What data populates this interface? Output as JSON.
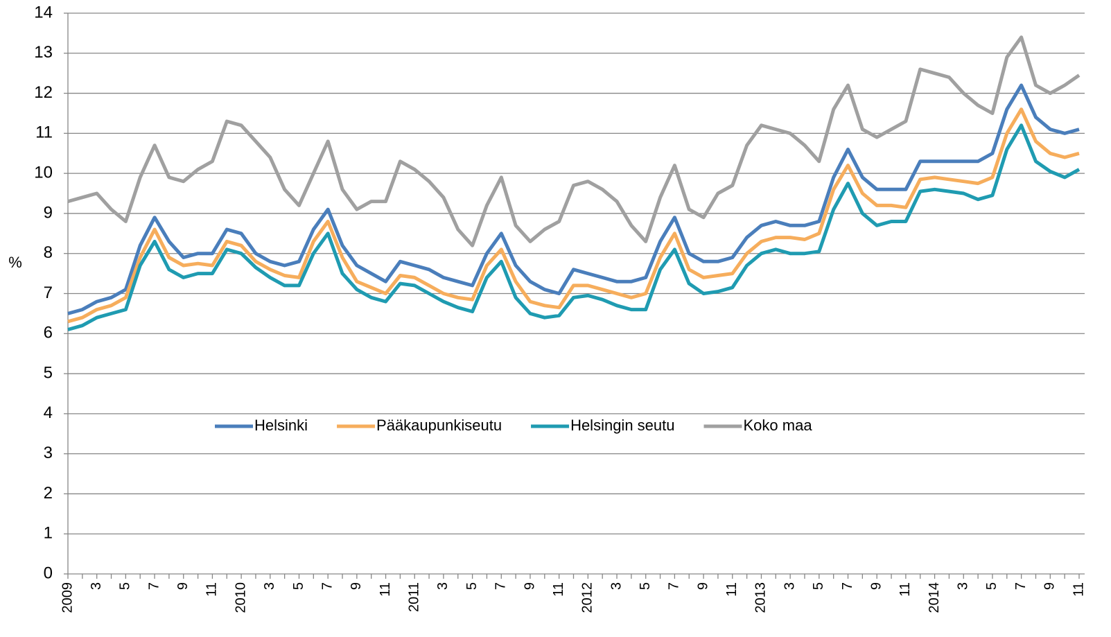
{
  "chart_data": {
    "type": "line",
    "y_label": "%",
    "categories": [
      "2009",
      null,
      "3",
      null,
      "5",
      null,
      "7",
      null,
      "9",
      null,
      "11",
      null,
      "2010",
      null,
      "3",
      null,
      "5",
      null,
      "7",
      null,
      "9",
      null,
      "11",
      null,
      "2011",
      null,
      "3",
      null,
      "5",
      null,
      "7",
      null,
      "9",
      null,
      "11",
      null,
      "2012",
      null,
      "3",
      null,
      "5",
      null,
      "7",
      null,
      "9",
      null,
      "11",
      null,
      "2013",
      null,
      "3",
      null,
      "5",
      null,
      "7",
      null,
      "9",
      null,
      "11",
      null,
      "2014",
      null,
      "3",
      null,
      "5",
      null,
      "7",
      null,
      "9",
      null,
      "11"
    ],
    "series": [
      {
        "name": "Helsinki",
        "color": "#4a7ebb",
        "values": [
          6.5,
          6.6,
          6.8,
          6.9,
          7.1,
          8.2,
          8.9,
          8.3,
          7.9,
          8.0,
          8.0,
          8.6,
          8.5,
          8.0,
          7.8,
          7.7,
          7.8,
          8.6,
          9.1,
          8.2,
          7.7,
          7.5,
          7.3,
          7.8,
          7.7,
          7.6,
          7.4,
          7.3,
          7.2,
          8.0,
          8.5,
          7.7,
          7.3,
          7.1,
          7.0,
          7.6,
          7.5,
          7.4,
          7.3,
          7.3,
          7.4,
          8.3,
          8.9,
          8.0,
          7.8,
          7.8,
          7.9,
          8.4,
          8.7,
          8.8,
          8.7,
          8.7,
          8.8,
          9.9,
          10.6,
          9.9,
          9.6,
          9.6,
          9.6,
          10.3,
          10.3,
          10.3,
          10.3,
          10.3,
          10.5,
          11.6,
          12.2,
          11.4,
          11.1,
          11.0,
          11.1
        ]
      },
      {
        "name": "Pääkaupunkiseutu",
        "color": "#f6ad5c",
        "values": [
          6.3,
          6.4,
          6.6,
          6.7,
          6.9,
          7.9,
          8.6,
          7.9,
          7.7,
          7.75,
          7.7,
          8.3,
          8.2,
          7.8,
          7.6,
          7.45,
          7.4,
          8.3,
          8.8,
          7.9,
          7.3,
          7.15,
          7.0,
          7.45,
          7.4,
          7.2,
          7.0,
          6.9,
          6.85,
          7.7,
          8.1,
          7.3,
          6.8,
          6.7,
          6.65,
          7.2,
          7.2,
          7.1,
          7.0,
          6.9,
          7.0,
          7.9,
          8.5,
          7.6,
          7.4,
          7.45,
          7.5,
          8.0,
          8.3,
          8.4,
          8.4,
          8.35,
          8.5,
          9.6,
          10.2,
          9.5,
          9.2,
          9.2,
          9.15,
          9.85,
          9.9,
          9.85,
          9.8,
          9.75,
          9.9,
          11.0,
          11.6,
          10.8,
          10.5,
          10.4,
          10.5
        ]
      },
      {
        "name": "Helsingin seutu",
        "color": "#1f9bb1",
        "values": [
          6.1,
          6.2,
          6.4,
          6.5,
          6.6,
          7.7,
          8.3,
          7.6,
          7.4,
          7.5,
          7.5,
          8.1,
          8.0,
          7.65,
          7.4,
          7.2,
          7.2,
          8.0,
          8.5,
          7.5,
          7.1,
          6.9,
          6.8,
          7.25,
          7.2,
          7.0,
          6.8,
          6.65,
          6.55,
          7.4,
          7.8,
          6.9,
          6.5,
          6.4,
          6.45,
          6.9,
          6.95,
          6.85,
          6.7,
          6.6,
          6.6,
          7.6,
          8.1,
          7.25,
          7.0,
          7.05,
          7.15,
          7.7,
          8.0,
          8.1,
          8.0,
          8.0,
          8.05,
          9.1,
          9.75,
          9.0,
          8.7,
          8.8,
          8.8,
          9.55,
          9.6,
          9.55,
          9.5,
          9.35,
          9.45,
          10.6,
          11.2,
          10.3,
          10.05,
          9.9,
          10.1
        ]
      },
      {
        "name": "Koko maa",
        "color": "#a0a0a0",
        "values": [
          9.3,
          9.4,
          9.5,
          9.1,
          8.8,
          9.9,
          10.7,
          9.9,
          9.8,
          10.1,
          10.3,
          11.3,
          11.2,
          10.8,
          10.4,
          9.6,
          9.2,
          10.0,
          10.8,
          9.6,
          9.1,
          9.3,
          9.3,
          10.3,
          10.1,
          9.8,
          9.4,
          8.6,
          8.2,
          9.2,
          9.9,
          8.7,
          8.3,
          8.6,
          8.8,
          9.7,
          9.8,
          9.6,
          9.3,
          8.7,
          8.3,
          9.4,
          10.2,
          9.1,
          8.9,
          9.5,
          9.7,
          10.7,
          11.2,
          11.1,
          11.0,
          10.7,
          10.3,
          11.6,
          12.2,
          11.1,
          10.9,
          11.1,
          11.3,
          12.6,
          12.5,
          12.4,
          12.0,
          11.7,
          11.5,
          12.9,
          13.4,
          12.2,
          12.0,
          12.2,
          12.45
        ]
      }
    ],
    "ylim": [
      0,
      14
    ],
    "yticks": [
      0,
      1,
      2,
      3,
      4,
      5,
      6,
      7,
      8,
      9,
      10,
      11,
      12,
      13,
      14
    ],
    "grid": true,
    "legend": "center"
  }
}
